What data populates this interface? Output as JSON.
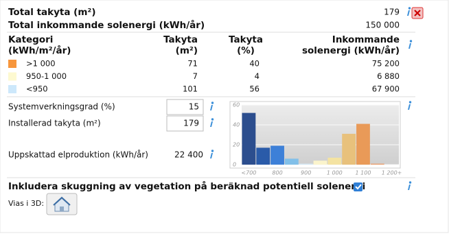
{
  "summary": [
    {
      "label": "Total takyta (m²)",
      "value": "179"
    },
    {
      "label": "Total inkommande solenergi (kWh/år)",
      "value": "150 000"
    }
  ],
  "table": {
    "headers": [
      [
        "Kategori",
        "(kWh/m²/år)"
      ],
      [
        "Takyta",
        "(m²)"
      ],
      [
        "Takyta",
        "(%)"
      ],
      [
        "Inkommande",
        "solenergi (kWh/år)"
      ]
    ],
    "rows": [
      {
        "color": "#f7963c",
        "cells": [
          ">1 000",
          "71",
          "40",
          "75 200"
        ]
      },
      {
        "color": "#fdf9d0",
        "cells": [
          "950-1 000",
          "7",
          "4",
          "6 880"
        ]
      },
      {
        "color": "#cde8fb",
        "cells": [
          "<950",
          "101",
          "56",
          "67 900"
        ]
      }
    ]
  },
  "inputs": [
    {
      "label": "Systemverkningsgrad (%)",
      "value": "15"
    },
    {
      "label": "Installerad takyta (m²)",
      "value": "179"
    }
  ],
  "output": {
    "label": "Uppskattad elproduktion (kWh/år)",
    "value": "22 400"
  },
  "chart_data": {
    "type": "bar",
    "categories": [
      "<700",
      null,
      "800",
      null,
      "900",
      null,
      "1 000",
      null,
      "1 100",
      null,
      "1 200+"
    ],
    "values": [
      52,
      17,
      19,
      6,
      1,
      4,
      7,
      31,
      41,
      1,
      0
    ],
    "colors": [
      "#2c4e8e",
      "#2a5ba9",
      "#3d80d8",
      "#82c0e9",
      "#d4e9f6",
      "#fbf4cc",
      "#f4e3a2",
      "#e8c17c",
      "#e99a58",
      "#eaa172",
      "#eaa172"
    ],
    "ylim": [
      0,
      60
    ],
    "yticks": [
      0,
      20,
      40,
      60
    ],
    "grid": true
  },
  "vegetation": {
    "label": "Inkludera skuggning av vegetation på beräknad potentiell solenergi",
    "checked": true
  },
  "view3d": {
    "label": "Vias i 3D:"
  }
}
